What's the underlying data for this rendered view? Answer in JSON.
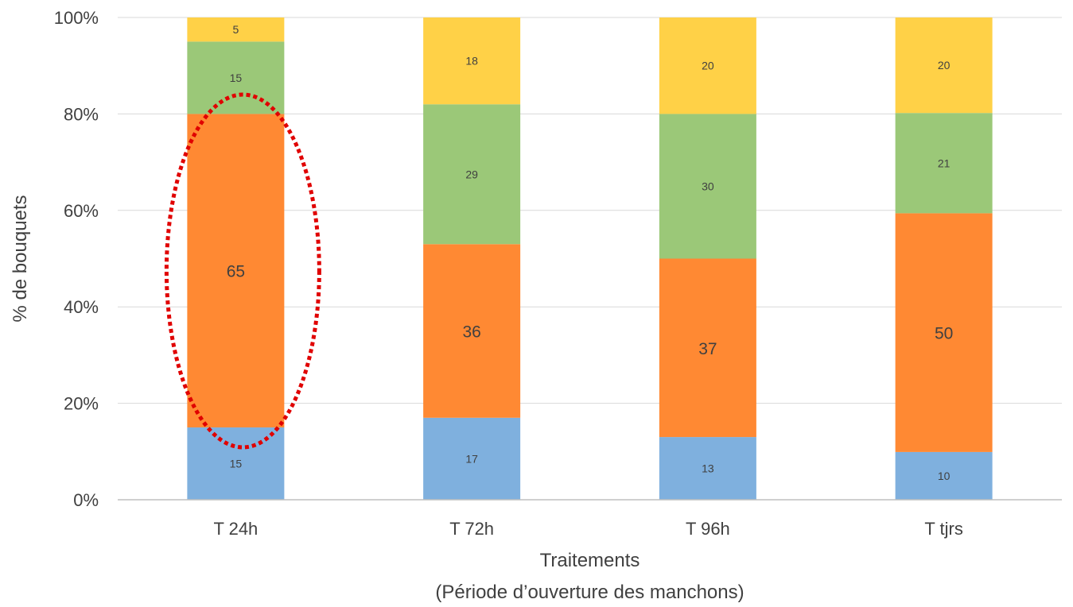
{
  "chart_data": {
    "type": "bar",
    "stacked": true,
    "percent": true,
    "categories": [
      "T 24h",
      "T 72h",
      "T 96h",
      "T tjrs"
    ],
    "series": [
      {
        "color": "#7FB0DE",
        "values": [
          15,
          17,
          13,
          10
        ]
      },
      {
        "color": "#FF8933",
        "values": [
          65,
          36,
          37,
          50
        ]
      },
      {
        "color": "#9BC878",
        "values": [
          15,
          29,
          30,
          21
        ]
      },
      {
        "color": "#FFD147",
        "values": [
          5,
          18,
          20,
          20
        ]
      }
    ],
    "ylim": [
      0,
      100
    ],
    "yticks": [
      "0%",
      "20%",
      "40%",
      "60%",
      "80%",
      "100%"
    ],
    "ylabel": "% de bouquets",
    "xlabel": "Traitements",
    "xlabel_sub": "(Période d’ouverture des manchons)",
    "grid": true,
    "legend": "none",
    "annotation": {
      "shape": "dotted-ellipse",
      "color": "#E00000",
      "highlights": "T 24h"
    }
  }
}
